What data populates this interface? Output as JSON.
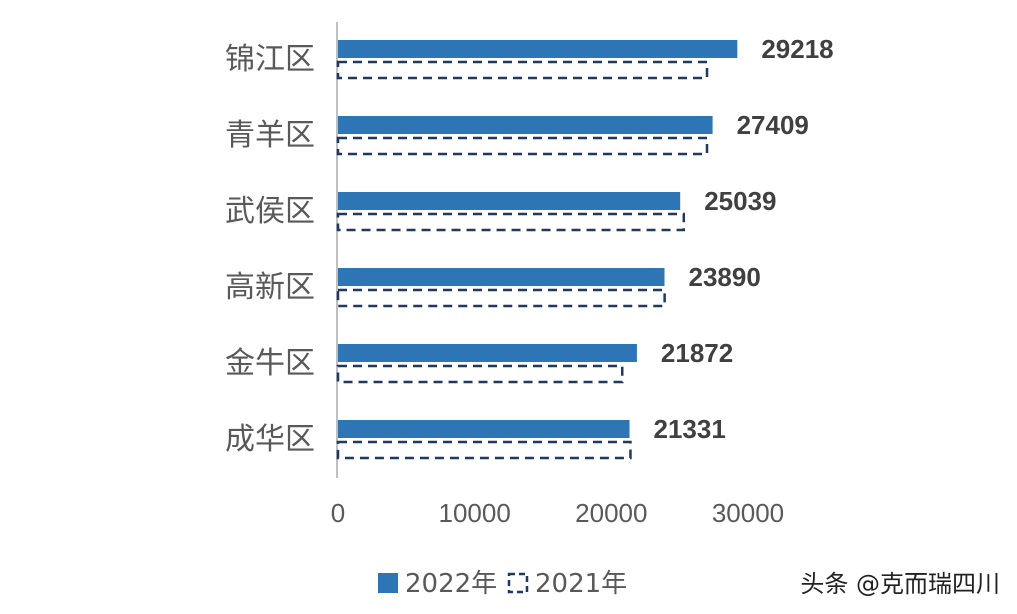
{
  "chart_data": {
    "type": "bar",
    "orientation": "horizontal",
    "categories": [
      "锦江区",
      "青羊区",
      "武侯区",
      "高新区",
      "金牛区",
      "成华区"
    ],
    "series": [
      {
        "name": "2022年",
        "values": [
          29218,
          27409,
          25039,
          23890,
          21872,
          21331
        ],
        "color": "#2e75b6",
        "style": "solid"
      },
      {
        "name": "2021年",
        "values": [
          27000,
          27000,
          25300,
          23900,
          20800,
          21400
        ],
        "color": "#1f3864",
        "style": "dashed-outline"
      }
    ],
    "data_labels": [
      "29218",
      "27409",
      "25039",
      "23890",
      "21872",
      "21331"
    ],
    "xlim": [
      0,
      30000
    ],
    "xticks": [
      0,
      10000,
      20000,
      30000
    ],
    "xtick_labels": [
      "0",
      "10000",
      "20000",
      "30000"
    ],
    "grid": false,
    "legend": "bottom"
  },
  "watermark": "头条 @克而瑞四川"
}
